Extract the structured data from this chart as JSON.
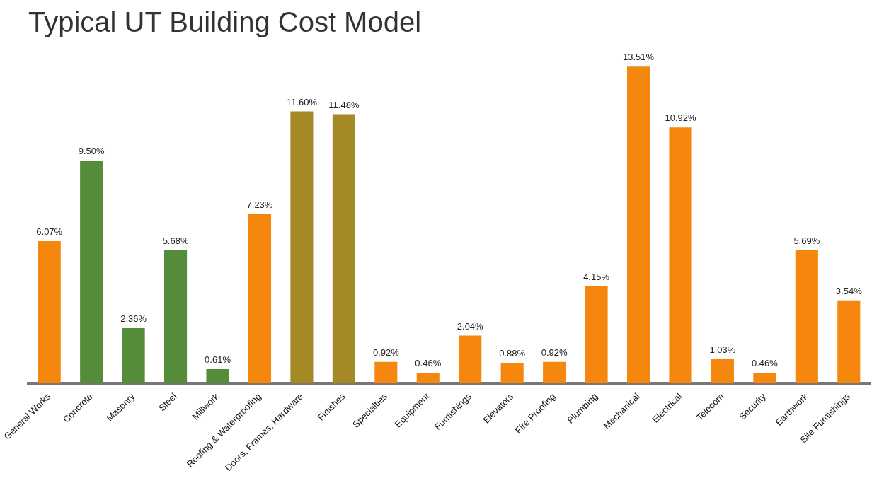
{
  "chart_data": {
    "type": "bar",
    "title": "Typical UT Building Cost Model",
    "categories": [
      "General Works",
      "Concrete",
      "Masonry",
      "Steel",
      "Millwork",
      "Roofing & Waterproofing",
      "Doors, Frames, Hardware",
      "Finishes",
      "Specialties",
      "Equipment",
      "Furnishings",
      "Elevators",
      "Fire Proofing",
      "Plumbing",
      "Mechanical",
      "Electrical",
      "Telecom",
      "Security",
      "Earthwork",
      "Site Furnishings"
    ],
    "values": [
      6.07,
      9.5,
      2.36,
      5.68,
      0.61,
      7.23,
      11.6,
      11.48,
      0.92,
      0.46,
      2.04,
      0.88,
      0.92,
      4.15,
      13.51,
      10.92,
      1.03,
      0.46,
      5.69,
      3.54
    ],
    "value_labels": [
      "6.07%",
      "9.50%",
      "2.36%",
      "5.68%",
      "0.61%",
      "7.23%",
      "11.60%",
      "11.48%",
      "0.92%",
      "0.46%",
      "2.04%",
      "0.88%",
      "0.92%",
      "4.15%",
      "13.51%",
      "10.92%",
      "1.03%",
      "0.46%",
      "5.69%",
      "3.54%"
    ],
    "colors": [
      "#f5870f",
      "#548c3a",
      "#548c3a",
      "#548c3a",
      "#548c3a",
      "#f5870f",
      "#a48925",
      "#a48925",
      "#f5870f",
      "#f5870f",
      "#f5870f",
      "#f5870f",
      "#f5870f",
      "#f5870f",
      "#f5870f",
      "#f5870f",
      "#f5870f",
      "#f5870f",
      "#f5870f",
      "#f5870f"
    ],
    "legend": false
  }
}
